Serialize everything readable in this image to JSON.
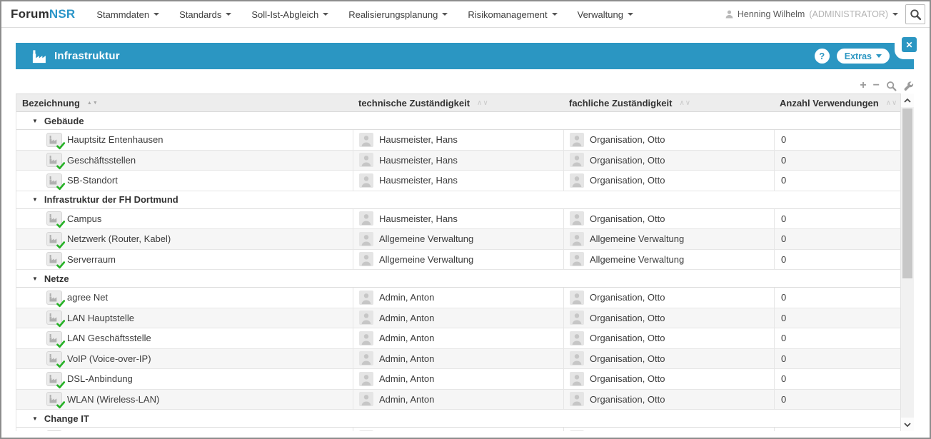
{
  "brand": {
    "prefix": "Forum",
    "suffix": "NSR"
  },
  "nav": {
    "menu": [
      "Stammdaten",
      "Standards",
      "Soll-Ist-Abgleich",
      "Realisierungsplanung",
      "Risikomanagement",
      "Verwaltung"
    ],
    "user": {
      "name": "Henning Wilhelm",
      "role": "(ADMINISTRATOR)"
    }
  },
  "panel": {
    "title": "Infrastruktur",
    "help_label": "?",
    "extras_label": "Extras",
    "close_label": "✕"
  },
  "toolbar": {
    "icons": [
      "plus",
      "minus",
      "magnifier",
      "wrench"
    ],
    "plus_glyph": "+",
    "minus_glyph": "−"
  },
  "table": {
    "columns": [
      {
        "label": "Bezeichnung",
        "sort_style": "triangles"
      },
      {
        "label": "technische Zuständigkeit",
        "sort_style": "chevrons"
      },
      {
        "label": "fachliche Zuständigkeit",
        "sort_style": "chevrons"
      },
      {
        "label": "Anzahl Verwendungen",
        "sort_style": "chevrons"
      }
    ],
    "groups": [
      {
        "label": "Gebäude",
        "rows": [
          {
            "name": "Hauptsitz Entenhausen",
            "tech": "Hausmeister, Hans",
            "fach": "Organisation, Otto",
            "count": "0"
          },
          {
            "name": "Geschäftsstellen",
            "tech": "Hausmeister, Hans",
            "fach": "Organisation, Otto",
            "count": "0"
          },
          {
            "name": "SB-Standort",
            "tech": "Hausmeister, Hans",
            "fach": "Organisation, Otto",
            "count": "0"
          }
        ]
      },
      {
        "label": "Infrastruktur der FH Dortmund",
        "rows": [
          {
            "name": "Campus",
            "tech": "Hausmeister, Hans",
            "fach": "Organisation, Otto",
            "count": "0"
          },
          {
            "name": "Netzwerk (Router, Kabel)",
            "tech": "Allgemeine Verwaltung",
            "fach": "Allgemeine Verwaltung",
            "count": "0"
          },
          {
            "name": "Serverraum",
            "tech": "Allgemeine Verwaltung",
            "fach": "Allgemeine Verwaltung",
            "count": "0"
          }
        ]
      },
      {
        "label": "Netze",
        "rows": [
          {
            "name": "agree Net",
            "tech": "Admin, Anton",
            "fach": "Organisation, Otto",
            "count": "0"
          },
          {
            "name": "LAN Hauptstelle",
            "tech": "Admin, Anton",
            "fach": "Organisation, Otto",
            "count": "0"
          },
          {
            "name": "LAN Geschäftsstelle",
            "tech": "Admin, Anton",
            "fach": "Organisation, Otto",
            "count": "0"
          },
          {
            "name": "VoIP (Voice-over-IP)",
            "tech": "Admin, Anton",
            "fach": "Organisation, Otto",
            "count": "0"
          },
          {
            "name": "DSL-Anbindung",
            "tech": "Admin, Anton",
            "fach": "Organisation, Otto",
            "count": "0"
          },
          {
            "name": "WLAN (Wireless-LAN)",
            "tech": "Admin, Anton",
            "fach": "Organisation, Otto",
            "count": "0"
          }
        ]
      },
      {
        "label": "Change IT",
        "rows": [
          {
            "name": "",
            "tech": "",
            "fach": "",
            "count": "",
            "partial": true
          }
        ]
      }
    ]
  },
  "icons": {
    "group_collapsed": "▼",
    "sort_triangles": "▲▼",
    "sort_chevrons": "∧∨",
    "brand_area": "app-logo-text",
    "user": "person-silhouette",
    "search": "magnifying-glass",
    "panel_title": "factory",
    "item": "factory-thumbnail-with-green-check",
    "assignee": "person-avatar",
    "toolbar": "plus, minus, magnifier, wrench",
    "scroll": "chevron-up, chevron-down"
  },
  "colors": {
    "accent": "#2b96c2",
    "brand_blue": "#2a95c8",
    "check_green": "#28b228",
    "header_bg": "#ededed",
    "row_alt": "#f6f6f6"
  }
}
